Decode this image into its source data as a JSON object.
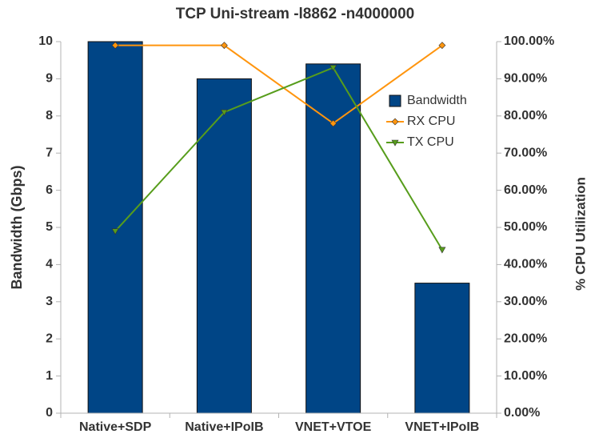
{
  "chart_data": {
    "type": "bar",
    "title": "TCP Uni-stream -l8862 -n4000000",
    "y_label": "Bandwidth (Gbps)",
    "y2_label": "% CPU Utilization",
    "categories": [
      "Native+SDP",
      "Native+IPoIB",
      "VNET+VTOE",
      "VNET+IPoIB"
    ],
    "series": [
      {
        "name": "Bandwidth",
        "type": "bar",
        "color": "#004586",
        "values": [
          10,
          9,
          9.4,
          3.5
        ]
      },
      {
        "name": "RX CPU",
        "type": "line",
        "marker": "diamond",
        "axis": "y2",
        "color": "#ff950e",
        "values": [
          99,
          99,
          78,
          99
        ]
      },
      {
        "name": "TX CPU",
        "type": "line",
        "marker": "triangle-down",
        "axis": "y2",
        "color": "#579d1c",
        "values": [
          49,
          81,
          93,
          44
        ]
      }
    ],
    "ylim": [
      0,
      10
    ],
    "yticks": [
      0,
      1,
      2,
      3,
      4,
      5,
      6,
      7,
      8,
      9,
      10
    ],
    "y2lim": [
      0,
      100
    ],
    "y2ticks": [
      {
        "value": 0,
        "label": "0.00%"
      },
      {
        "value": 10,
        "label": "10.00%"
      },
      {
        "value": 20,
        "label": "20.00%"
      },
      {
        "value": 30,
        "label": "30.00%"
      },
      {
        "value": 40,
        "label": "40.00%"
      },
      {
        "value": 50,
        "label": "50.00%"
      },
      {
        "value": 60,
        "label": "60.00%"
      },
      {
        "value": 70,
        "label": "70.00%"
      },
      {
        "value": 80,
        "label": "80.00%"
      },
      {
        "value": 90,
        "label": "90.00%"
      },
      {
        "value": 100,
        "label": "100.00%"
      }
    ],
    "grid": false,
    "legend": "right"
  }
}
